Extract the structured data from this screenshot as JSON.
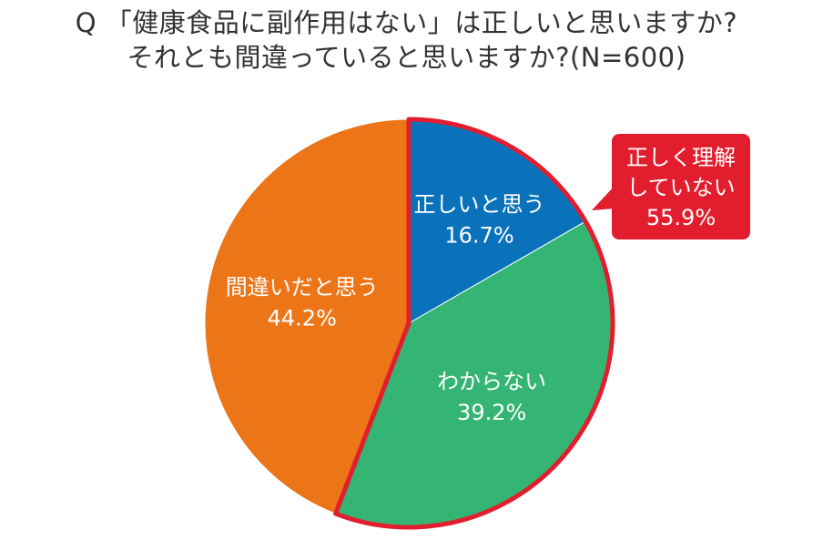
{
  "title": {
    "line1": "Q 「健康食品に副作用はない」は正しいと思いますか?",
    "line2": "それとも間違っていると思いますか?(N=600)"
  },
  "chart_data": {
    "type": "pie",
    "slices": [
      {
        "label": "正しいと思う",
        "value": 16.7,
        "value_label": "16.7%",
        "color": "#0a72ba"
      },
      {
        "label": "わからない",
        "value": 39.2,
        "value_label": "39.2%",
        "color": "#35b574"
      },
      {
        "label": "間違いだと思う",
        "value": 44.2,
        "value_label": "44.2%",
        "color": "#ec7518"
      }
    ],
    "start": "12 o'clock",
    "direction": "clockwise",
    "highlight": {
      "slices": [
        "正しいと思う",
        "わからない"
      ],
      "outline_color": "#e21e2e",
      "callout_lines": [
        "正しく理解",
        "していない",
        "55.9%"
      ]
    }
  }
}
